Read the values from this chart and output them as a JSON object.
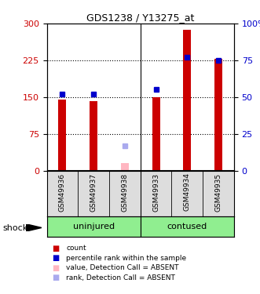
{
  "title": "GDS1238 / Y13275_at",
  "samples": [
    "GSM49936",
    "GSM49937",
    "GSM49938",
    "GSM49933",
    "GSM49934",
    "GSM49935"
  ],
  "bar_color": "#CC0000",
  "dot_color": "#0000CC",
  "absent_bar_color": "#FFB6C1",
  "absent_dot_color": "#AAAAEE",
  "count_values": [
    145,
    142,
    0,
    150,
    287,
    228
  ],
  "rank_values": [
    52,
    52,
    0,
    55,
    77,
    75
  ],
  "absent_flags": [
    false,
    false,
    true,
    false,
    false,
    false
  ],
  "absent_count": 15,
  "absent_rank": 17,
  "ylim_left": [
    0,
    300
  ],
  "ylim_right": [
    0,
    100
  ],
  "yticks_left": [
    0,
    75,
    150,
    225,
    300
  ],
  "yticks_right": [
    0,
    25,
    50,
    75,
    100
  ],
  "group_color": "#90EE90",
  "group_spans": [
    [
      0,
      2,
      "uninjured"
    ],
    [
      3,
      5,
      "contused"
    ]
  ],
  "shock_label": "shock",
  "legend_items": [
    {
      "color": "#CC0000",
      "label": "count"
    },
    {
      "color": "#0000CC",
      "label": "percentile rank within the sample"
    },
    {
      "color": "#FFB6C1",
      "label": "value, Detection Call = ABSENT"
    },
    {
      "color": "#AAAAEE",
      "label": "rank, Detection Call = ABSENT"
    }
  ],
  "bar_width": 0.25
}
